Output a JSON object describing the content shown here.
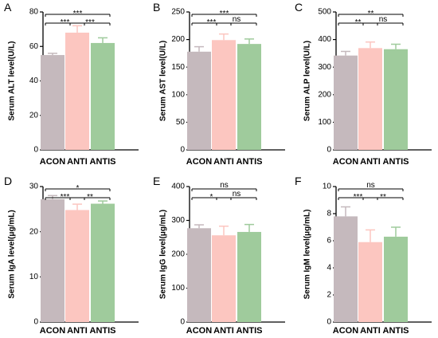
{
  "colors": {
    "ACON": "#c5b9bd",
    "ANTI": "#fcc6c0",
    "ANTIS": "#9fcb9c"
  },
  "chart_data": [
    {
      "panel": "A",
      "type": "bar",
      "ylabel": "Serum ALT level(U/L)",
      "categories": [
        "ACON",
        "ANTI",
        "ANTIS"
      ],
      "values": [
        55,
        68,
        62
      ],
      "errors": [
        1,
        4,
        3
      ],
      "ylim": [
        0,
        80
      ],
      "yticks": [
        0,
        20,
        40,
        60,
        80
      ],
      "comparisons": [
        {
          "from": 0,
          "to": 1,
          "label": "***",
          "level": 1
        },
        {
          "from": 1,
          "to": 2,
          "label": "***",
          "level": 1
        },
        {
          "from": 0,
          "to": 2,
          "label": "***",
          "level": 2
        }
      ]
    },
    {
      "panel": "B",
      "type": "bar",
      "ylabel": "Serum AST level(U/L)",
      "categories": [
        "ACON",
        "ANTI",
        "ANTIS"
      ],
      "values": [
        178,
        199,
        192
      ],
      "errors": [
        9,
        11,
        9
      ],
      "ylim": [
        0,
        250
      ],
      "yticks": [
        0,
        50,
        100,
        150,
        200,
        250
      ],
      "comparisons": [
        {
          "from": 0,
          "to": 1,
          "label": "***",
          "level": 1
        },
        {
          "from": 1,
          "to": 2,
          "label": "ns",
          "level": 1
        },
        {
          "from": 0,
          "to": 2,
          "label": "***",
          "level": 2
        }
      ]
    },
    {
      "panel": "C",
      "type": "bar",
      "ylabel": "Serum ALP level(U/L)",
      "categories": [
        "ACON",
        "ANTI",
        "ANTIS"
      ],
      "values": [
        342,
        369,
        365
      ],
      "errors": [
        15,
        22,
        18
      ],
      "ylim": [
        0,
        500
      ],
      "yticks": [
        0,
        100,
        200,
        300,
        400,
        500
      ],
      "comparisons": [
        {
          "from": 0,
          "to": 1,
          "label": "**",
          "level": 1
        },
        {
          "from": 1,
          "to": 2,
          "label": "ns",
          "level": 1
        },
        {
          "from": 0,
          "to": 2,
          "label": "**",
          "level": 2
        }
      ]
    },
    {
      "panel": "D",
      "type": "bar",
      "ylabel": "Serum IgA level(μg/mL)",
      "categories": [
        "ACON",
        "ANTI",
        "ANTIS"
      ],
      "values": [
        27.2,
        24.8,
        26.2
      ],
      "errors": [
        0.8,
        1.3,
        0.6
      ],
      "ylim": [
        0,
        30
      ],
      "yticks": [
        0,
        10,
        20,
        30
      ],
      "comparisons": [
        {
          "from": 0,
          "to": 1,
          "label": "***",
          "level": 1
        },
        {
          "from": 1,
          "to": 2,
          "label": "**",
          "level": 1
        },
        {
          "from": 0,
          "to": 2,
          "label": "*",
          "level": 2
        }
      ]
    },
    {
      "panel": "E",
      "type": "bar",
      "ylabel": "Serum IgG level(μg/mL)",
      "categories": [
        "ACON",
        "ANTI",
        "ANTIS"
      ],
      "values": [
        277,
        256,
        266
      ],
      "errors": [
        10,
        27,
        22
      ],
      "ylim": [
        0,
        400
      ],
      "yticks": [
        0,
        100,
        200,
        300,
        400
      ],
      "comparisons": [
        {
          "from": 0,
          "to": 1,
          "label": "*",
          "level": 1
        },
        {
          "from": 1,
          "to": 2,
          "label": "ns",
          "level": 1
        },
        {
          "from": 0,
          "to": 2,
          "label": "ns",
          "level": 2
        }
      ]
    },
    {
      "panel": "F",
      "type": "bar",
      "ylabel": "Serum IgM level(μg/mL)",
      "categories": [
        "ACON",
        "ANTI",
        "ANTIS"
      ],
      "values": [
        7.8,
        5.9,
        6.3
      ],
      "errors": [
        0.7,
        0.9,
        0.7
      ],
      "ylim": [
        0,
        10
      ],
      "yticks": [
        0,
        2,
        4,
        6,
        8,
        10
      ],
      "comparisons": [
        {
          "from": 0,
          "to": 1,
          "label": "***",
          "level": 1
        },
        {
          "from": 1,
          "to": 2,
          "label": "**",
          "level": 1
        },
        {
          "from": 0,
          "to": 2,
          "label": "ns",
          "level": 2
        }
      ]
    }
  ]
}
